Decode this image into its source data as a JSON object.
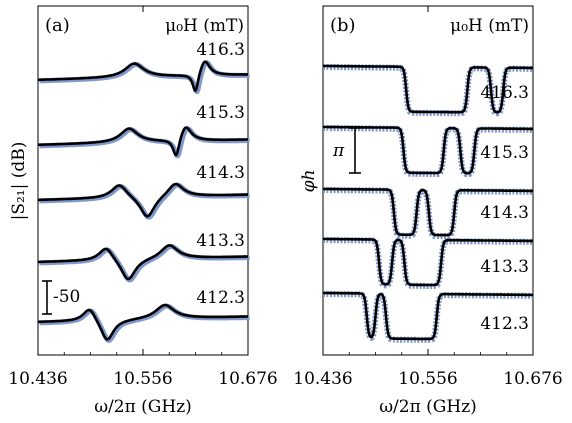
{
  "chart_data": [
    {
      "panel": "(a)",
      "type": "line",
      "header": "μ₀H (mT)",
      "xlabel": "ω/2π (GHz)",
      "ylabel": "|S₂₁| (dB)",
      "xlim": [
        10.436,
        10.676
      ],
      "xticks": [
        "10.436",
        "10.556",
        "10.676"
      ],
      "scale_bar_label": "-50",
      "colors": {
        "data": "#7f99cc",
        "fit": "#000000"
      },
      "series": [
        {
          "field": "416.3",
          "resonances": [
            {
              "kind": "peak",
              "f": 10.546,
              "gamma": 0.013
            },
            {
              "kind": "fano",
              "f": 10.625,
              "gamma": 0.007
            }
          ]
        },
        {
          "field": "415.3",
          "resonances": [
            {
              "kind": "peak",
              "f": 10.54,
              "gamma": 0.012
            },
            {
              "kind": "fano",
              "f": 10.603,
              "gamma": 0.008
            }
          ]
        },
        {
          "field": "414.3",
          "resonances": [
            {
              "kind": "peak",
              "f": 10.529,
              "gamma": 0.011
            },
            {
              "kind": "dip",
              "f": 10.561,
              "gamma": 0.01
            },
            {
              "kind": "peak",
              "f": 10.593,
              "gamma": 0.011
            }
          ]
        },
        {
          "field": "413.3",
          "resonances": [
            {
              "kind": "peak",
              "f": 10.514,
              "gamma": 0.01
            },
            {
              "kind": "dip",
              "f": 10.539,
              "gamma": 0.01
            },
            {
              "kind": "peak",
              "f": 10.586,
              "gamma": 0.012
            }
          ]
        },
        {
          "field": "412.3",
          "resonances": [
            {
              "kind": "peak",
              "f": 10.495,
              "gamma": 0.009
            },
            {
              "kind": "dip",
              "f": 10.515,
              "gamma": 0.009
            },
            {
              "kind": "peak",
              "f": 10.581,
              "gamma": 0.013
            }
          ]
        }
      ]
    },
    {
      "panel": "(b)",
      "type": "line",
      "header": "μ₀H (mT)",
      "xlabel": "ω/2π (GHz)",
      "ylabel": "φh",
      "xlim": [
        10.436,
        10.676
      ],
      "xticks": [
        "10.436",
        "10.556",
        "10.676"
      ],
      "scale_bar_label": "π",
      "colors": {
        "data": "#7f99cc",
        "fit": "#000000"
      },
      "series": [
        {
          "field": "416.3",
          "phase_dips": [
            [
              10.531,
              10.601
            ],
            [
              10.628,
              10.642
            ]
          ]
        },
        {
          "field": "415.3",
          "phase_dips": [
            [
              10.528,
              10.574
            ],
            [
              10.593,
              10.609
            ]
          ]
        },
        {
          "field": "414.3",
          "phase_dips": [
            [
              10.517,
              10.543
            ],
            [
              10.557,
              10.586
            ]
          ]
        },
        {
          "field": "413.3",
          "phase_dips": [
            [
              10.5,
              10.515
            ],
            [
              10.529,
              10.571
            ]
          ]
        },
        {
          "field": "412.3",
          "phase_dips": [
            [
              10.486,
              10.496
            ],
            [
              10.508,
              10.566
            ]
          ]
        }
      ]
    }
  ]
}
